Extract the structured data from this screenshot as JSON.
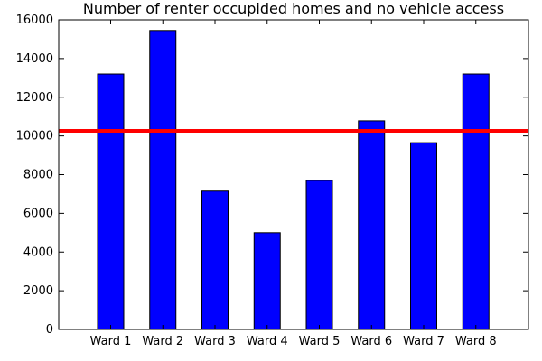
{
  "chart_data": {
    "type": "bar",
    "title": "Number of renter occupided homes and no vehicle access",
    "xlabel": "",
    "ylabel": "",
    "categories": [
      "Ward 1",
      "Ward 2",
      "Ward 3",
      "Ward 4",
      "Ward 5",
      "Ward 6",
      "Ward 7",
      "Ward 8"
    ],
    "values": [
      13200,
      15450,
      7150,
      5000,
      7700,
      10780,
      9650,
      13200
    ],
    "ylim": [
      0,
      16000
    ],
    "yticks": [
      0,
      2000,
      4000,
      6000,
      8000,
      10000,
      12000,
      14000,
      16000
    ],
    "reference_line": {
      "value": 10260,
      "color": "#ff0000"
    },
    "bar_color": "#0000ff",
    "grid": false
  }
}
